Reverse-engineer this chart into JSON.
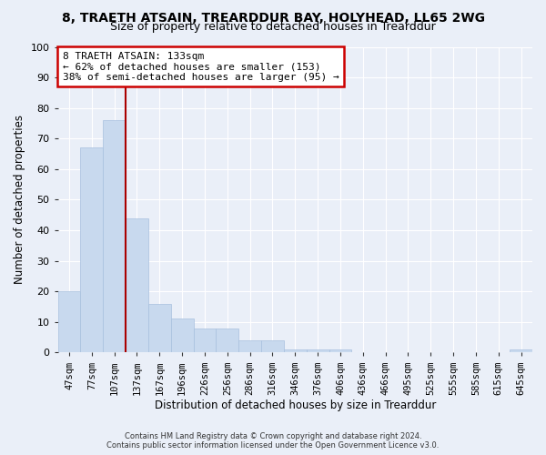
{
  "title": "8, TRAETH ATSAIN, TREARDDUR BAY, HOLYHEAD, LL65 2WG",
  "subtitle": "Size of property relative to detached houses in Trearddur",
  "xlabel": "Distribution of detached houses by size in Trearddur",
  "ylabel": "Number of detached properties",
  "bar_color": "#c8d9ee",
  "bar_edge_color": "#a8c0de",
  "categories": [
    "47sqm",
    "77sqm",
    "107sqm",
    "137sqm",
    "167sqm",
    "196sqm",
    "226sqm",
    "256sqm",
    "286sqm",
    "316sqm",
    "346sqm",
    "376sqm",
    "406sqm",
    "436sqm",
    "466sqm",
    "495sqm",
    "525sqm",
    "555sqm",
    "585sqm",
    "615sqm",
    "645sqm"
  ],
  "values": [
    20,
    67,
    76,
    44,
    16,
    11,
    8,
    8,
    4,
    4,
    1,
    1,
    1,
    0,
    0,
    0,
    0,
    0,
    0,
    0,
    1
  ],
  "ylim": [
    0,
    100
  ],
  "yticks": [
    0,
    10,
    20,
    30,
    40,
    50,
    60,
    70,
    80,
    90,
    100
  ],
  "marker_index": 2,
  "marker_label": "8 TRAETH ATSAIN: 133sqm",
  "annotation_line1": "← 62% of detached houses are smaller (153)",
  "annotation_line2": "38% of semi-detached houses are larger (95) →",
  "annotation_box_color": "#ffffff",
  "annotation_box_edge_color": "#cc0000",
  "marker_line_color": "#aa0000",
  "bg_color": "#eaeff8",
  "grid_color": "#ffffff",
  "footer_line1": "Contains HM Land Registry data © Crown copyright and database right 2024.",
  "footer_line2": "Contains public sector information licensed under the Open Government Licence v3.0."
}
